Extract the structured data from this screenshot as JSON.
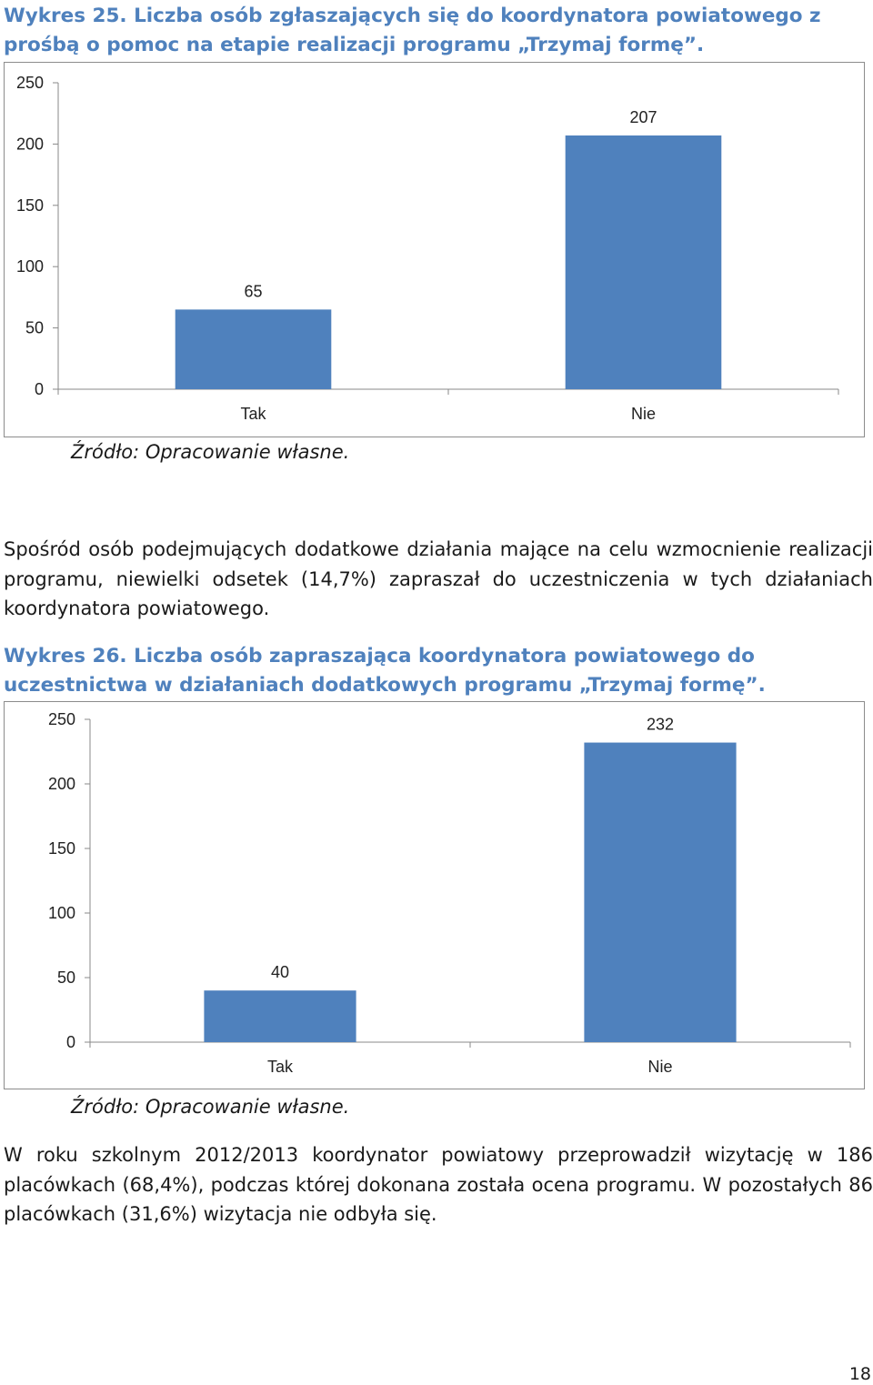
{
  "caption1": {
    "label": "Wykres  25.",
    "text": "Liczba osób zgłaszających się do koordynatora powiatowego z prośbą o pomoc na etapie realizacji programu „Trzymaj formę”."
  },
  "source1": "Źródło: Opracowanie własne.",
  "paragraph1": "Spośród osób podejmujących dodatkowe działania mające na celu wzmocnienie realizacji programu, niewielki odsetek (14,7%) zapraszał do uczestniczenia w tych działaniach koordynatora powiatowego.",
  "caption2": {
    "label": "Wykres  26.",
    "text": "Liczba osób zapraszająca koordynatora powiatowego do uczestnictwa w działaniach dodatkowych programu „Trzymaj formę”."
  },
  "source2": "Źródło: Opracowanie własne.",
  "paragraph2": "W roku szkolnym 2012/2013 koordynator powiatowy przeprowadził wizytację w 186 placówkach (68,4%), podczas której dokonana została ocena programu. W pozostałych 86 placówkach (31,6%) wizytacja nie odbyła się.",
  "page_number": "18",
  "colors": {
    "bar": "#4f81bd",
    "caption": "#4f81bd"
  },
  "chart_data": [
    {
      "type": "bar",
      "title": "",
      "xlabel": "",
      "ylabel": "",
      "categories": [
        "Tak",
        "Nie"
      ],
      "values": [
        65,
        207
      ],
      "data_labels": [
        "65",
        "207"
      ],
      "ylim": [
        0,
        250
      ],
      "yticks": [
        "0",
        "50",
        "100",
        "150",
        "200",
        "250"
      ],
      "grid": false,
      "legend": "none"
    },
    {
      "type": "bar",
      "title": "",
      "xlabel": "",
      "ylabel": "",
      "categories": [
        "Tak",
        "Nie"
      ],
      "values": [
        40,
        232
      ],
      "data_labels": [
        "40",
        "232"
      ],
      "ylim": [
        0,
        250
      ],
      "yticks": [
        "0",
        "50",
        "100",
        "150",
        "200",
        "250"
      ],
      "grid": false,
      "legend": "none"
    }
  ]
}
